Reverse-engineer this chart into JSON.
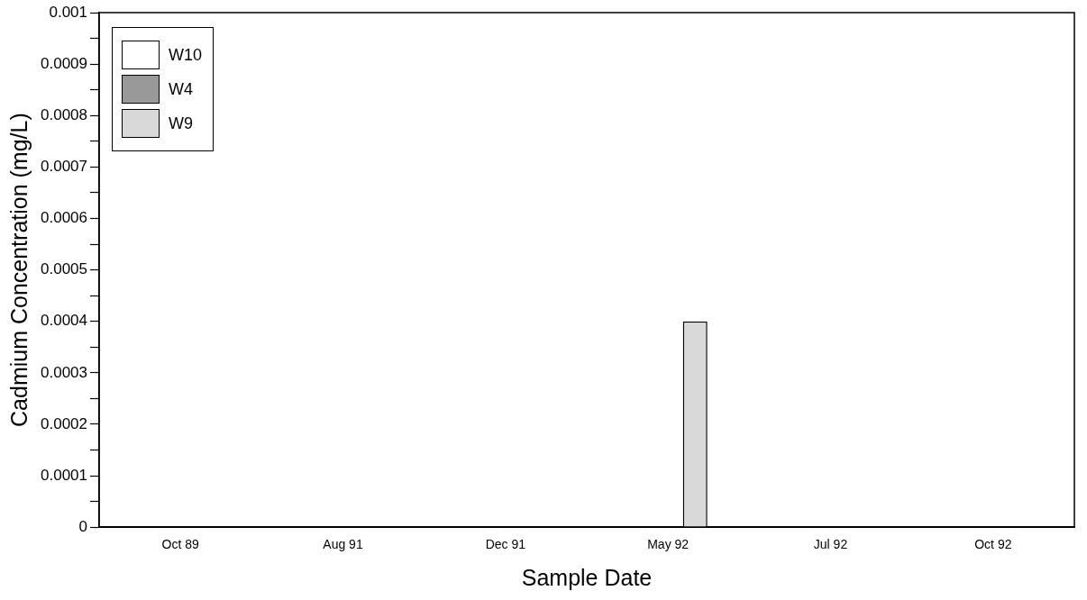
{
  "chart_data": {
    "type": "bar",
    "xlabel": "Sample Date",
    "ylabel": "Cadmium Concentration (mg/L)",
    "categories": [
      "Oct 89",
      "Aug 91",
      "Dec 91",
      "May 92",
      "Jul 92",
      "Oct 92"
    ],
    "series": [
      {
        "name": "W10",
        "color": "#ffffff",
        "values": [
          0,
          0,
          0,
          0,
          0,
          0
        ]
      },
      {
        "name": "W4",
        "color": "#999999",
        "values": [
          0,
          0,
          0,
          0,
          0,
          0
        ]
      },
      {
        "name": "W9",
        "color": "#d9d9d9",
        "values": [
          0,
          0,
          0,
          0.0004,
          0,
          0
        ]
      }
    ],
    "ylim": [
      0,
      0.001
    ],
    "yticks": [
      0,
      {
        "value": 5e-05,
        "label": null
      },
      0.0001,
      {
        "value": 0.00015,
        "label": null
      },
      0.0002,
      {
        "value": 0.00025,
        "label": null
      },
      0.0003,
      {
        "value": 0.00035,
        "label": null
      },
      0.0004,
      {
        "value": 0.00045,
        "label": null
      },
      0.0005,
      {
        "value": 0.00055,
        "label": null
      },
      0.0006,
      {
        "value": 0.00065,
        "label": null
      },
      0.0007,
      {
        "value": 0.00075,
        "label": null
      },
      0.0008,
      {
        "value": 0.00085,
        "label": null
      },
      0.0009,
      {
        "value": 0.00095,
        "label": null
      },
      0.001
    ],
    "grid": false,
    "legend": "top left"
  }
}
